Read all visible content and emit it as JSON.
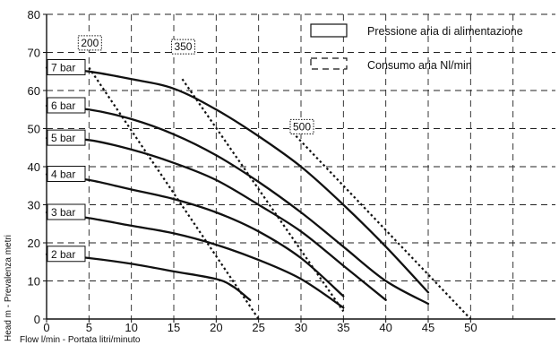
{
  "chart_data": {
    "type": "line",
    "title": "",
    "xlabel": "Flow l/min - Portata litri/minuto",
    "ylabel": "Head m - Prevalenza metri",
    "xlim": [
      0,
      60
    ],
    "ylim": [
      0,
      80
    ],
    "x_ticks": [
      0,
      5,
      10,
      15,
      20,
      25,
      30,
      35,
      40,
      45,
      50
    ],
    "y_ticks": [
      0,
      10,
      20,
      30,
      40,
      50,
      60,
      70,
      80
    ],
    "grid": true,
    "legend": {
      "placement": "top-right",
      "entries": [
        {
          "label": "Pressione aria di alimentazione",
          "style": "solid"
        },
        {
          "label": "Consumo aria Nl/min",
          "style": "dashed"
        }
      ]
    },
    "series": [
      {
        "name": "7 bar",
        "style": "solid",
        "points": [
          [
            0,
            66
          ],
          [
            5,
            65
          ],
          [
            10,
            63
          ],
          [
            15,
            60.5
          ],
          [
            20,
            55
          ],
          [
            25,
            48
          ],
          [
            30,
            40
          ],
          [
            35,
            30
          ],
          [
            40,
            19
          ],
          [
            45,
            7
          ]
        ]
      },
      {
        "name": "6 bar",
        "style": "solid",
        "points": [
          [
            0,
            56
          ],
          [
            5,
            55
          ],
          [
            10,
            52.5
          ],
          [
            15,
            48.5
          ],
          [
            20,
            43
          ],
          [
            25,
            36
          ],
          [
            30,
            28
          ],
          [
            35,
            19
          ],
          [
            40,
            10
          ],
          [
            45,
            4
          ]
        ]
      },
      {
        "name": "5 bar",
        "style": "solid",
        "points": [
          [
            0,
            47.5
          ],
          [
            5,
            47
          ],
          [
            10,
            44.5
          ],
          [
            15,
            41
          ],
          [
            20,
            36.5
          ],
          [
            25,
            30
          ],
          [
            30,
            23
          ],
          [
            35,
            14
          ],
          [
            40,
            5
          ]
        ]
      },
      {
        "name": "4 bar",
        "style": "solid",
        "points": [
          [
            0,
            38
          ],
          [
            5,
            36.5
          ],
          [
            10,
            34
          ],
          [
            15,
            31.5
          ],
          [
            20,
            28
          ],
          [
            25,
            23
          ],
          [
            30,
            16
          ],
          [
            35,
            6
          ]
        ]
      },
      {
        "name": "3 bar",
        "style": "solid",
        "points": [
          [
            0,
            28
          ],
          [
            5,
            26.5
          ],
          [
            10,
            24.5
          ],
          [
            15,
            22.5
          ],
          [
            20,
            19.5
          ],
          [
            25,
            15.5
          ],
          [
            30,
            10.5
          ],
          [
            35,
            3
          ]
        ]
      },
      {
        "name": "2 bar",
        "style": "solid",
        "points": [
          [
            0,
            17
          ],
          [
            5,
            16
          ],
          [
            10,
            14.5
          ],
          [
            15,
            12.5
          ],
          [
            20,
            10.5
          ],
          [
            22,
            8.5
          ],
          [
            24,
            5
          ]
        ]
      }
    ],
    "consumption_lines": [
      {
        "label": "200",
        "points": [
          [
            5,
            66
          ],
          [
            25,
            0
          ]
        ]
      },
      {
        "label": "350",
        "points": [
          [
            16,
            63
          ],
          [
            35,
            2
          ]
        ]
      },
      {
        "label": "500",
        "points": [
          [
            29,
            49
          ],
          [
            50,
            0
          ]
        ]
      }
    ]
  }
}
